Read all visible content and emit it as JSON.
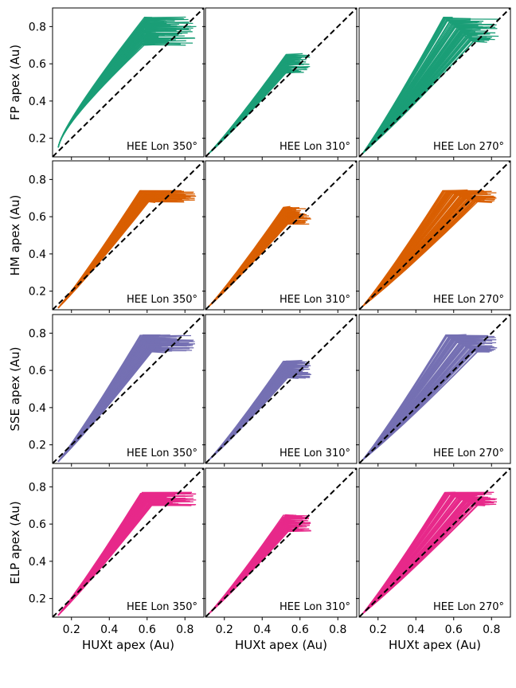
{
  "chart_data": {
    "type": "line",
    "layout": "4x3 grid of line plots, shared axes",
    "xlabel": "HUXt apex (Au)",
    "xlim": [
      0.1,
      0.9
    ],
    "ylim": [
      0.1,
      0.9
    ],
    "xticks": [
      0.2,
      0.4,
      0.6,
      0.8
    ],
    "yticks": [
      0.2,
      0.4,
      0.6,
      0.8
    ],
    "tick_labels": [
      "0.2",
      "0.4",
      "0.6",
      "0.8"
    ],
    "reference_line": "y = x (dashed black)",
    "grid": false,
    "columns": [
      "HEE Lon 350$^\\circ$",
      "HEE Lon 310$^\\circ$",
      "HEE Lon 270$^\\circ$"
    ],
    "column_labels": [
      "HEE Lon 350°",
      "HEE Lon 310°",
      "HEE Lon 270°"
    ],
    "rows": [
      {
        "ylabel": "FP apex (Au)",
        "color": "#1b9e77",
        "panels": [
          {
            "start": [
              0.13,
              0.15
            ],
            "knee": [
              0.15,
              0.28
            ],
            "end_lo": [
              0.58,
              0.7
            ],
            "end_hi": [
              0.59,
              0.85
            ],
            "end_x_max": 0.86
          },
          {
            "start": [
              0.12,
              0.12
            ],
            "end_lo": [
              0.52,
              0.55
            ],
            "end_hi": [
              0.53,
              0.65
            ],
            "end_x_max": 0.66
          },
          {
            "start": [
              0.12,
              0.12
            ],
            "end_lo": [
              0.7,
              0.72
            ],
            "end_hi": [
              0.55,
              0.85
            ],
            "end_x_max": 0.84
          }
        ]
      },
      {
        "ylabel": "HM apex (Au)",
        "color": "#d95f02",
        "panels": [
          {
            "start": [
              0.13,
              0.11
            ],
            "end_lo": [
              0.6,
              0.68
            ],
            "end_hi": [
              0.57,
              0.74
            ],
            "end_x_max": 0.86
          },
          {
            "start": [
              0.12,
              0.12
            ],
            "end_lo": [
              0.53,
              0.56
            ],
            "end_hi": [
              0.52,
              0.65
            ],
            "end_x_max": 0.66
          },
          {
            "start": [
              0.12,
              0.12
            ],
            "end_lo": [
              0.72,
              0.68
            ],
            "end_hi": [
              0.55,
              0.74
            ],
            "end_x_max": 0.83
          }
        ]
      },
      {
        "ylabel": "SSE apex (Au)",
        "color": "#7570b3",
        "panels": [
          {
            "start": [
              0.13,
              0.11
            ],
            "end_lo": [
              0.62,
              0.7
            ],
            "end_hi": [
              0.57,
              0.79
            ],
            "end_x_max": 0.86
          },
          {
            "start": [
              0.12,
              0.12
            ],
            "end_lo": [
              0.53,
              0.56
            ],
            "end_hi": [
              0.52,
              0.65
            ],
            "end_x_max": 0.66
          },
          {
            "start": [
              0.12,
              0.12
            ],
            "end_lo": [
              0.72,
              0.7
            ],
            "end_hi": [
              0.55,
              0.79
            ],
            "end_x_max": 0.83
          }
        ]
      },
      {
        "ylabel": "ELP apex (Au)",
        "color": "#e7298a",
        "panels": [
          {
            "start": [
              0.13,
              0.11
            ],
            "end_lo": [
              0.62,
              0.7
            ],
            "end_hi": [
              0.57,
              0.77
            ],
            "end_x_max": 0.86
          },
          {
            "start": [
              0.12,
              0.12
            ],
            "end_lo": [
              0.53,
              0.56
            ],
            "end_hi": [
              0.52,
              0.65
            ],
            "end_x_max": 0.66
          },
          {
            "start": [
              0.12,
              0.12
            ],
            "end_lo": [
              0.72,
              0.7
            ],
            "end_hi": [
              0.55,
              0.77
            ],
            "end_x_max": 0.83
          }
        ]
      }
    ]
  }
}
